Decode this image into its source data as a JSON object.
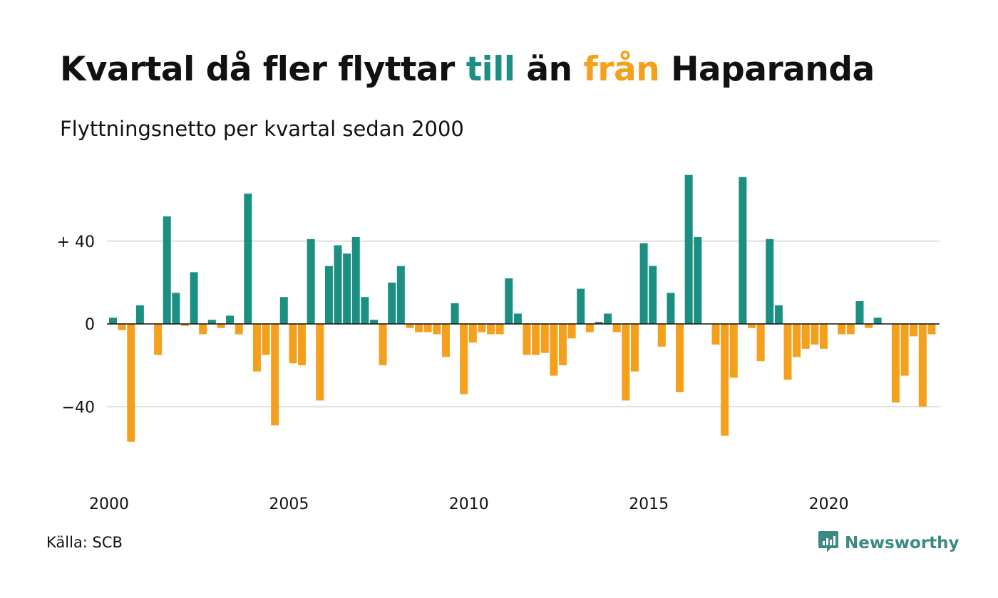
{
  "title": {
    "part1": "Kvartal då fler flyttar ",
    "highlight_in": "till",
    "part2": " än ",
    "highlight_out": "från",
    "part3": " Haparanda"
  },
  "subtitle": "Flyttningsnetto per kvartal sedan 2000",
  "source": "Källa: SCB",
  "brand": {
    "name": "Newsworthy",
    "icon": "newsworthy-logo-icon"
  },
  "colors": {
    "positive": "#1a8f82",
    "negative": "#f4a01d",
    "grid": "#dddddd",
    "brand": "#3b8a83"
  },
  "chart_data": {
    "type": "bar",
    "x_start": "2000-Q1",
    "x_unit": "quarter",
    "x_tick_labels": [
      "2000",
      "2005",
      "2010",
      "2015",
      "2020"
    ],
    "y_tick_labels": [
      "+ 40",
      "0",
      "−40"
    ],
    "y_ticks": [
      40,
      0,
      -40
    ],
    "ylim": [
      -60,
      75
    ],
    "grid": true,
    "values": [
      3,
      -3,
      -57,
      9,
      0,
      -15,
      52,
      15,
      -1,
      25,
      -5,
      2,
      -2,
      4,
      -5,
      63,
      -23,
      -15,
      -49,
      13,
      -19,
      -20,
      41,
      -37,
      28,
      38,
      34,
      42,
      13,
      2,
      -20,
      20,
      28,
      -2,
      -4,
      -4,
      -5,
      -16,
      10,
      -34,
      -9,
      -4,
      -5,
      -5,
      22,
      5,
      -15,
      -15,
      -14,
      -25,
      -20,
      -7,
      17,
      -4,
      1,
      5,
      -4,
      -37,
      -23,
      39,
      28,
      -11,
      15,
      -33,
      72,
      42,
      0,
      -10,
      -54,
      -26,
      71,
      -2,
      -18,
      41,
      9,
      -27,
      -16,
      -12,
      -10,
      -12,
      0,
      -5,
      -5,
      11,
      -2,
      3,
      0,
      -38,
      -25,
      -6,
      -40,
      -5
    ]
  }
}
